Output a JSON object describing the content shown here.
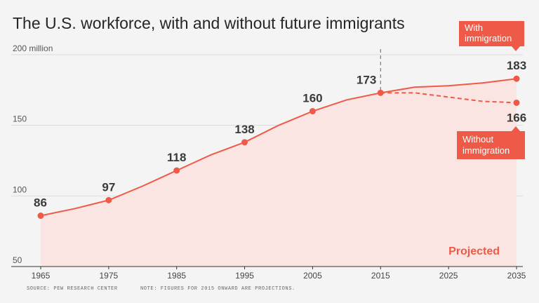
{
  "colors": {
    "accent": "#ef5a48",
    "fill": "#fbe5e2",
    "grid": "#dcdcdc",
    "text": "#3a3a3a",
    "divider": "#777777"
  },
  "chart_data": {
    "type": "line",
    "title": "The U.S. workforce, with and without future immigrants",
    "ylim": [
      50,
      200
    ],
    "xlim": [
      1965,
      2035
    ],
    "yticks": [
      {
        "value": 50,
        "label": "50"
      },
      {
        "value": 100,
        "label": "100"
      },
      {
        "value": 150,
        "label": "150"
      },
      {
        "value": 200,
        "label": "200 million"
      }
    ],
    "xticks": [
      "1965",
      "1975",
      "1985",
      "1995",
      "2005",
      "2015",
      "2025",
      "2035"
    ],
    "series": [
      {
        "name": "With immigration",
        "style": "solid",
        "x": [
          1965,
          1970,
          1975,
          1980,
          1985,
          1990,
          1995,
          2000,
          2005,
          2010,
          2015,
          2020,
          2025,
          2030,
          2035
        ],
        "values": [
          86,
          91,
          97,
          107,
          118,
          129,
          138,
          150,
          160,
          168,
          173,
          177,
          178,
          180,
          183
        ]
      },
      {
        "name": "Without immigration",
        "style": "dashed",
        "x": [
          2015,
          2020,
          2025,
          2030,
          2035
        ],
        "values": [
          173,
          173,
          170,
          167,
          166
        ]
      }
    ],
    "data_labels": [
      {
        "x": 1965,
        "value": 86,
        "label": "86"
      },
      {
        "x": 1975,
        "value": 97,
        "label": "97"
      },
      {
        "x": 1985,
        "value": 118,
        "label": "118"
      },
      {
        "x": 1995,
        "value": 138,
        "label": "138"
      },
      {
        "x": 2005,
        "value": 160,
        "label": "160"
      },
      {
        "x": 2015,
        "value": 173,
        "label": "173"
      },
      {
        "x": 2035,
        "value": 183,
        "label": "183"
      },
      {
        "x": 2035,
        "value": 166,
        "label": "166",
        "position": "below"
      }
    ],
    "projection_start": 2015,
    "projection_label": "Projected",
    "callouts": {
      "with": {
        "line1": "With",
        "line2": "immigration"
      },
      "without": {
        "line1": "Without",
        "line2": "immigration"
      }
    },
    "source": "SOURCE: PEW RESEARCH CENTER",
    "note": "NOTE: FIGURES FOR 2015 ONWARD ARE PROJECTIONS."
  }
}
